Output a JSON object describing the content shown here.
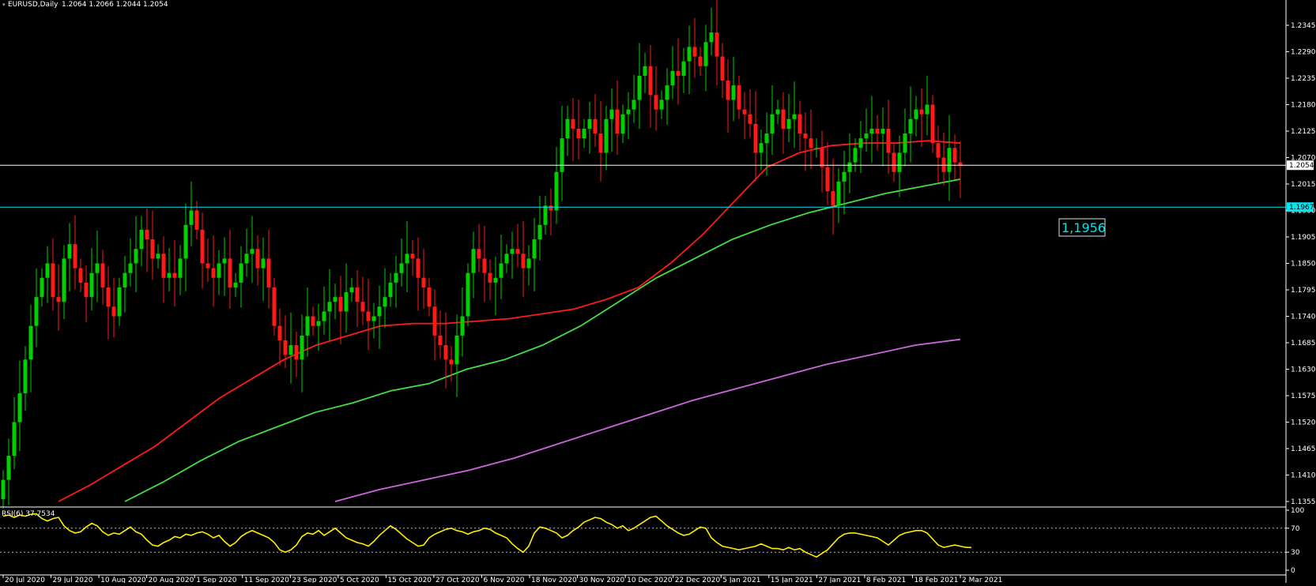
{
  "header": {
    "title": "EURUSD,Daily",
    "ohlc": "1.2064 1.2066 1.2044 1.2054"
  },
  "colors": {
    "background": "#000000",
    "bull_candle": "#00d000",
    "bear_candle": "#ff1a1a",
    "ma_red": "#ff1a1a",
    "ma_green": "#44dd44",
    "ma_violet": "#cc66dd",
    "rsi_line": "#ffee00",
    "price_line": "#ffffff",
    "support_line": "#00e5ee",
    "axis_text": "#ffffff"
  },
  "chart_data": [
    {
      "type": "candlestick",
      "title": "EURUSD,Daily",
      "ylim": [
        1.1355,
        1.24
      ],
      "y_ticks": [
        "1.2345",
        "1.2290",
        "1.2235",
        "1.2180",
        "1.2125",
        "1.2070",
        "1.2015",
        "1.1960",
        "1.1905",
        "1.1850",
        "1.1795",
        "1.1740",
        "1.1685",
        "1.1630",
        "1.1575",
        "1.1520",
        "1.1465",
        "1.1410",
        "1.1355"
      ],
      "x_tick_labels": [
        "20 Jul 2020",
        "29 Jul 2020",
        "10 Aug 2020",
        "20 Aug 2020",
        "1 Sep 2020",
        "11 Sep 2020",
        "23 Sep 2020",
        "5 Oct 2020",
        "15 Oct 2020",
        "27 Oct 2020",
        "6 Nov 2020",
        "18 Nov 2020",
        "30 Nov 2020",
        "10 Dec 2020",
        "22 Dec 2020",
        "5 Jan 2021",
        "15 Jan 2021",
        "27 Jan 2021",
        "8 Feb 2021",
        "18 Feb 2021",
        "2 Mar 2021"
      ],
      "close": [
        1.14,
        1.145,
        1.152,
        1.158,
        1.165,
        1.172,
        1.178,
        1.182,
        1.185,
        1.178,
        1.177,
        1.186,
        1.189,
        1.184,
        1.181,
        1.178,
        1.183,
        1.185,
        1.18,
        1.176,
        1.174,
        1.18,
        1.183,
        1.185,
        1.188,
        1.192,
        1.19,
        1.186,
        1.187,
        1.182,
        1.183,
        1.182,
        1.186,
        1.193,
        1.196,
        1.192,
        1.185,
        1.184,
        1.182,
        1.185,
        1.186,
        1.18,
        1.181,
        1.185,
        1.187,
        1.188,
        1.184,
        1.186,
        1.18,
        1.172,
        1.169,
        1.166,
        1.168,
        1.165,
        1.17,
        1.174,
        1.172,
        1.173,
        1.175,
        1.177,
        1.178,
        1.175,
        1.179,
        1.18,
        1.177,
        1.175,
        1.173,
        1.174,
        1.176,
        1.178,
        1.181,
        1.183,
        1.185,
        1.187,
        1.186,
        1.182,
        1.18,
        1.176,
        1.17,
        1.168,
        1.165,
        1.164,
        1.17,
        1.174,
        1.183,
        1.188,
        1.186,
        1.183,
        1.181,
        1.182,
        1.185,
        1.187,
        1.188,
        1.187,
        1.184,
        1.186,
        1.19,
        1.193,
        1.197,
        1.196,
        1.204,
        1.211,
        1.215,
        1.213,
        1.211,
        1.213,
        1.215,
        1.212,
        1.208,
        1.215,
        1.217,
        1.212,
        1.216,
        1.217,
        1.219,
        1.224,
        1.226,
        1.22,
        1.217,
        1.219,
        1.222,
        1.225,
        1.224,
        1.227,
        1.23,
        1.228,
        1.226,
        1.231,
        1.233,
        1.228,
        1.223,
        1.219,
        1.222,
        1.217,
        1.216,
        1.214,
        1.208,
        1.21,
        1.212,
        1.216,
        1.217,
        1.213,
        1.215,
        1.216,
        1.212,
        1.211,
        1.209,
        1.209,
        1.205,
        1.2,
        1.197,
        1.202,
        1.204,
        1.206,
        1.209,
        1.211,
        1.212,
        1.213,
        1.212,
        1.213,
        1.208,
        1.204,
        1.208,
        1.212,
        1.215,
        1.217,
        1.216,
        1.218,
        1.21,
        1.207,
        1.204,
        1.209,
        1.206,
        1.2054
      ],
      "ma_50": {
        "x_start": 10,
        "values": [
          1.1355,
          1.139,
          1.143,
          1.147,
          1.152,
          1.157,
          1.161,
          1.165,
          1.168,
          1.17,
          1.172,
          1.1725,
          1.1725,
          1.173,
          1.1735,
          1.1745,
          1.1755,
          1.1775,
          1.18,
          1.185,
          1.191,
          1.198,
          1.205,
          1.208,
          1.2095,
          1.21,
          1.21,
          1.2105,
          1.21
        ]
      },
      "ma_100": {
        "x_start": 22,
        "values": [
          1.1355,
          1.1395,
          1.144,
          1.148,
          1.151,
          1.154,
          1.156,
          1.1585,
          1.16,
          1.163,
          1.165,
          1.168,
          1.172,
          1.177,
          1.182,
          1.186,
          1.19,
          1.193,
          1.1955,
          1.1975,
          1.1995,
          1.201,
          1.2025
        ]
      },
      "ma_200": {
        "x_start": 60,
        "values": [
          1.1355,
          1.138,
          1.14,
          1.142,
          1.1445,
          1.1475,
          1.1505,
          1.1535,
          1.1565,
          1.159,
          1.1615,
          1.164,
          1.166,
          1.168,
          1.1692
        ]
      },
      "current_price": {
        "value": 1.2054,
        "label": "1.2054"
      },
      "support_line": {
        "value": 1.1967,
        "label": "1.1967"
      },
      "annotation": {
        "text": "1,1956"
      }
    },
    {
      "type": "line",
      "title": "RSI(6) 37.7534",
      "ylim": [
        0,
        100
      ],
      "levels": [
        70,
        30
      ],
      "y_ticks": [
        "100",
        "70",
        "30",
        "0"
      ],
      "values": [
        90,
        92,
        88,
        92,
        90,
        93,
        94,
        86,
        82,
        86,
        88,
        74,
        66,
        62,
        64,
        72,
        78,
        74,
        64,
        58,
        62,
        60,
        66,
        72,
        64,
        60,
        50,
        42,
        40,
        46,
        50,
        56,
        54,
        60,
        58,
        62,
        64,
        60,
        54,
        58,
        48,
        40,
        46,
        56,
        62,
        66,
        62,
        58,
        54,
        46,
        34,
        30,
        34,
        42,
        56,
        62,
        60,
        66,
        58,
        64,
        70,
        62,
        54,
        50,
        46,
        44,
        40,
        48,
        58,
        66,
        74,
        68,
        60,
        52,
        46,
        40,
        42,
        54,
        60,
        64,
        68,
        70,
        66,
        64,
        60,
        64,
        66,
        70,
        68,
        62,
        58,
        54,
        44,
        36,
        30,
        40,
        62,
        72,
        70,
        66,
        62,
        54,
        58,
        66,
        72,
        80,
        84,
        88,
        86,
        80,
        76,
        70,
        74,
        66,
        70,
        76,
        82,
        88,
        90,
        82,
        74,
        68,
        62,
        58,
        60,
        66,
        72,
        70,
        54,
        46,
        40,
        38,
        36,
        34,
        36,
        38,
        40,
        44,
        40,
        36,
        36,
        34,
        38,
        34,
        36,
        30,
        26,
        22,
        28,
        34,
        44,
        54,
        60,
        62,
        62,
        60,
        58,
        56,
        54,
        48,
        42,
        50,
        58,
        62,
        64,
        66,
        66,
        62,
        52,
        42,
        38,
        40,
        42,
        40,
        38,
        37.75
      ]
    }
  ]
}
